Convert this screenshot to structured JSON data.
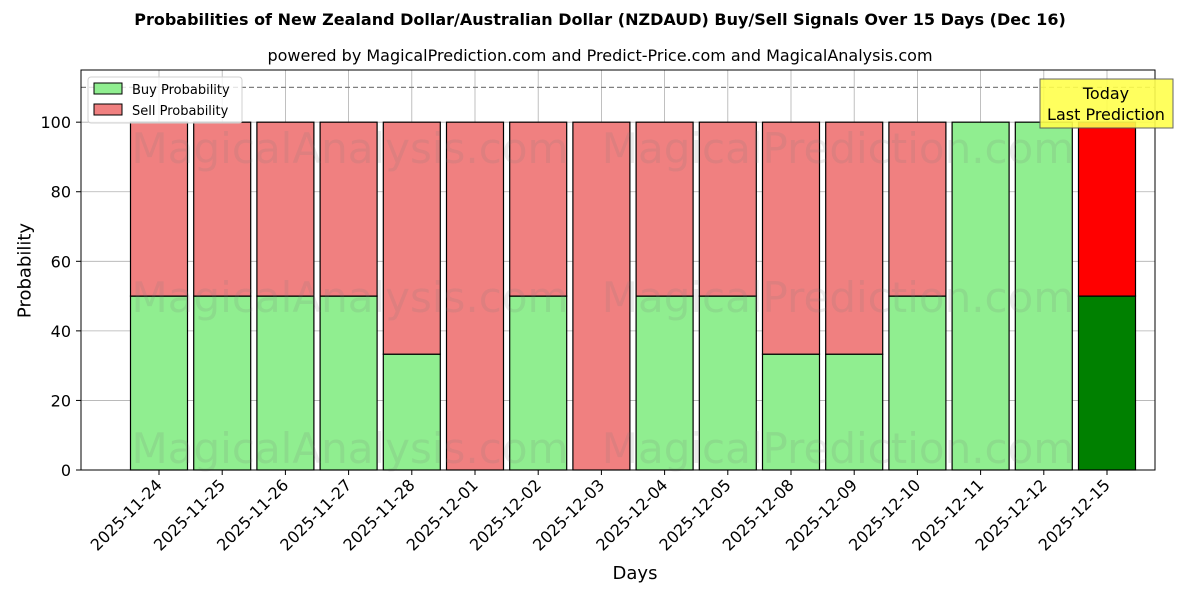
{
  "header": {
    "title": "Probabilities of New Zealand Dollar/Australian Dollar (NZDAUD) Buy/Sell Signals Over 15 Days (Dec 16)",
    "subtitle": "powered by MagicalPrediction.com and Predict-Price.com and MagicalAnalysis.com"
  },
  "legend": {
    "buy_label": "Buy Probability",
    "sell_label": "Sell Probability"
  },
  "annotation": {
    "line1": "Today",
    "line2": "Last Prediction"
  },
  "watermarks": [
    "MagicalAnalysis.com",
    "MagicalPrediction.com"
  ],
  "colors": {
    "buy": "#90ee90",
    "sell": "#f08080",
    "today_buy": "#008000",
    "today_sell": "#ff0000",
    "annotation_bg": "#ffff4d"
  },
  "chart_data": {
    "type": "bar",
    "stacked": true,
    "title": "Probabilities of New Zealand Dollar/Australian Dollar (NZDAUD) Buy/Sell Signals Over 15 Days (Dec 16)",
    "subtitle": "powered by MagicalPrediction.com and Predict-Price.com and MagicalAnalysis.com",
    "xlabel": "Days",
    "ylabel": "Probability",
    "ylim": [
      0,
      115
    ],
    "yticks": [
      0,
      20,
      40,
      60,
      80,
      100
    ],
    "grid": true,
    "legend_position": "upper left",
    "reference_line": {
      "y": 110,
      "style": "dashed"
    },
    "categories": [
      "2025-11-24",
      "2025-11-25",
      "2025-11-26",
      "2025-11-27",
      "2025-11-28",
      "2025-12-01",
      "2025-12-02",
      "2025-12-03",
      "2025-12-04",
      "2025-12-05",
      "2025-12-08",
      "2025-12-09",
      "2025-12-10",
      "2025-12-11",
      "2025-12-12",
      "2025-12-15"
    ],
    "series": [
      {
        "name": "Buy Probability",
        "values": [
          50,
          50,
          50,
          50,
          33.3,
          0,
          50,
          0,
          50,
          50,
          33.3,
          33.3,
          50,
          100,
          100,
          50
        ]
      },
      {
        "name": "Sell Probability",
        "values": [
          50,
          50,
          50,
          50,
          66.7,
          100,
          50,
          100,
          50,
          50,
          66.7,
          66.7,
          50,
          0,
          0,
          50
        ]
      }
    ],
    "highlight": {
      "category": "2025-12-15",
      "label": "Today\nLast Prediction"
    }
  }
}
